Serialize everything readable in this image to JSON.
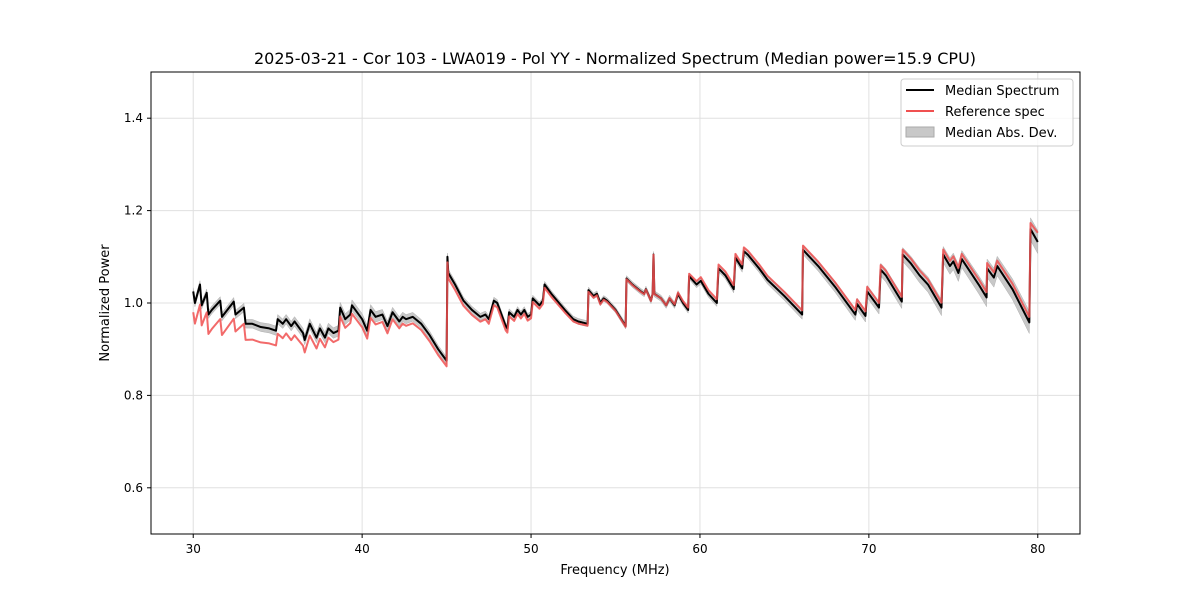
{
  "chart_data": {
    "type": "line",
    "title": "2025-03-21 - Cor 103 - LWA019 - Pol YY - Normalized Spectrum (Median power=15.9 CPU)",
    "xlabel": "Frequency (MHz)",
    "ylabel": "Normalized Power",
    "xlim": [
      27.5,
      82.5
    ],
    "ylim": [
      0.5,
      1.5
    ],
    "xticks": [
      30,
      40,
      50,
      60,
      70,
      80
    ],
    "yticks": [
      0.6,
      0.8,
      1.0,
      1.2,
      1.4
    ],
    "xtick_labels": [
      "30",
      "40",
      "50",
      "60",
      "70",
      "80"
    ],
    "ytick_labels": [
      "0.6",
      "0.8",
      "1.0",
      "1.2",
      "1.4"
    ],
    "grid": true,
    "legend_position": "top-right",
    "legend": [
      "Median Spectrum",
      "Reference spec",
      "Median Abs. Dev."
    ],
    "colors": {
      "median": "#000000",
      "reference": "#f05050",
      "mad": "#c8c8c8"
    },
    "median": [
      [
        30.0,
        1.025
      ],
      [
        30.1,
        1.0
      ],
      [
        30.4,
        1.04
      ],
      [
        30.5,
        0.995
      ],
      [
        30.8,
        1.022
      ],
      [
        30.9,
        0.975
      ],
      [
        31.1,
        0.985
      ],
      [
        31.6,
        1.005
      ],
      [
        31.7,
        0.97
      ],
      [
        32.4,
        1.003
      ],
      [
        32.5,
        0.975
      ],
      [
        33.0,
        0.99
      ],
      [
        33.1,
        0.955
      ],
      [
        33.5,
        0.955
      ],
      [
        34.0,
        0.948
      ],
      [
        34.5,
        0.945
      ],
      [
        34.9,
        0.94
      ],
      [
        35.0,
        0.965
      ],
      [
        35.3,
        0.955
      ],
      [
        35.5,
        0.965
      ],
      [
        35.8,
        0.95
      ],
      [
        36.0,
        0.96
      ],
      [
        36.5,
        0.935
      ],
      [
        36.6,
        0.92
      ],
      [
        36.9,
        0.955
      ],
      [
        37.3,
        0.925
      ],
      [
        37.5,
        0.945
      ],
      [
        37.8,
        0.925
      ],
      [
        38.0,
        0.945
      ],
      [
        38.3,
        0.935
      ],
      [
        38.6,
        0.94
      ],
      [
        38.7,
        0.99
      ],
      [
        39.0,
        0.965
      ],
      [
        39.3,
        0.975
      ],
      [
        39.4,
        0.995
      ],
      [
        40.0,
        0.965
      ],
      [
        40.3,
        0.94
      ],
      [
        40.5,
        0.985
      ],
      [
        40.8,
        0.97
      ],
      [
        41.2,
        0.975
      ],
      [
        41.5,
        0.95
      ],
      [
        41.8,
        0.98
      ],
      [
        42.2,
        0.96
      ],
      [
        42.4,
        0.97
      ],
      [
        42.6,
        0.965
      ],
      [
        43.0,
        0.97
      ],
      [
        43.5,
        0.955
      ],
      [
        44.0,
        0.93
      ],
      [
        44.5,
        0.9
      ],
      [
        45.0,
        0.875
      ],
      [
        45.05,
        1.1
      ],
      [
        45.1,
        1.065
      ],
      [
        45.5,
        1.04
      ],
      [
        46.0,
        1.005
      ],
      [
        46.5,
        0.985
      ],
      [
        47.0,
        0.97
      ],
      [
        47.3,
        0.975
      ],
      [
        47.5,
        0.965
      ],
      [
        47.8,
        1.005
      ],
      [
        48.0,
        1.0
      ],
      [
        48.5,
        0.95
      ],
      [
        48.6,
        0.945
      ],
      [
        48.7,
        0.98
      ],
      [
        49.0,
        0.97
      ],
      [
        49.2,
        0.985
      ],
      [
        49.4,
        0.975
      ],
      [
        49.6,
        0.985
      ],
      [
        49.8,
        0.97
      ],
      [
        50.0,
        0.975
      ],
      [
        50.1,
        1.01
      ],
      [
        50.5,
        0.995
      ],
      [
        50.7,
        1.005
      ],
      [
        50.8,
        1.04
      ],
      [
        51.2,
        1.02
      ],
      [
        52.0,
        0.985
      ],
      [
        52.5,
        0.965
      ],
      [
        52.8,
        0.96
      ],
      [
        53.35,
        0.955
      ],
      [
        53.4,
        1.028
      ],
      [
        53.7,
        1.015
      ],
      [
        53.9,
        1.02
      ],
      [
        54.1,
        1.0
      ],
      [
        54.3,
        1.01
      ],
      [
        54.5,
        1.005
      ],
      [
        55.0,
        0.985
      ],
      [
        55.6,
        0.95
      ],
      [
        55.65,
        1.053
      ],
      [
        56.0,
        1.04
      ],
      [
        56.5,
        1.025
      ],
      [
        56.7,
        1.02
      ],
      [
        56.8,
        1.03
      ],
      [
        57.1,
        1.005
      ],
      [
        57.2,
        1.02
      ],
      [
        57.25,
        1.105
      ],
      [
        57.3,
        1.02
      ],
      [
        57.7,
        1.01
      ],
      [
        58.0,
        0.995
      ],
      [
        58.2,
        1.01
      ],
      [
        58.5,
        0.995
      ],
      [
        58.7,
        1.02
      ],
      [
        59.0,
        1.0
      ],
      [
        59.3,
        0.985
      ],
      [
        59.36,
        1.058
      ],
      [
        59.8,
        1.04
      ],
      [
        60.05,
        1.048
      ],
      [
        60.5,
        1.02
      ],
      [
        61.0,
        1.0
      ],
      [
        61.1,
        1.075
      ],
      [
        61.5,
        1.06
      ],
      [
        62.0,
        1.03
      ],
      [
        62.1,
        1.098
      ],
      [
        62.5,
        1.075
      ],
      [
        62.6,
        1.112
      ],
      [
        62.85,
        1.104
      ],
      [
        63.5,
        1.075
      ],
      [
        64.0,
        1.05
      ],
      [
        65.0,
        1.015
      ],
      [
        66.05,
        0.975
      ],
      [
        66.1,
        1.115
      ],
      [
        67.0,
        1.08
      ],
      [
        68.0,
        1.035
      ],
      [
        69.2,
        0.975
      ],
      [
        69.3,
        0.998
      ],
      [
        69.8,
        0.972
      ],
      [
        69.9,
        1.025
      ],
      [
        70.6,
        0.99
      ],
      [
        70.7,
        1.072
      ],
      [
        71.0,
        1.06
      ],
      [
        71.5,
        1.03
      ],
      [
        71.95,
        1.003
      ],
      [
        72.0,
        1.105
      ],
      [
        72.5,
        1.085
      ],
      [
        73.0,
        1.06
      ],
      [
        73.5,
        1.04
      ],
      [
        74.3,
        0.99
      ],
      [
        74.4,
        1.105
      ],
      [
        74.8,
        1.08
      ],
      [
        75.0,
        1.09
      ],
      [
        75.3,
        1.065
      ],
      [
        75.5,
        1.095
      ],
      [
        76.5,
        1.04
      ],
      [
        76.97,
        1.012
      ],
      [
        77.0,
        1.075
      ],
      [
        77.4,
        1.055
      ],
      [
        77.6,
        1.08
      ],
      [
        78.5,
        1.03
      ],
      [
        79.5,
        0.958
      ],
      [
        79.57,
        1.16
      ],
      [
        80.0,
        1.132
      ]
    ],
    "reference_offset": [
      [
        30,
        -0.045
      ],
      [
        33,
        -0.035
      ],
      [
        36,
        -0.03
      ],
      [
        38,
        -0.02
      ],
      [
        42,
        -0.015
      ],
      [
        45,
        -0.012
      ],
      [
        50,
        -0.008
      ],
      [
        55,
        -0.002
      ],
      [
        58,
        0.0
      ],
      [
        60,
        0.008
      ],
      [
        70,
        0.01
      ],
      [
        79.5,
        0.012
      ],
      [
        80,
        0.02
      ]
    ],
    "mad_halfwidth": [
      [
        30,
        0.008
      ],
      [
        40,
        0.012
      ],
      [
        45,
        0.008
      ],
      [
        55,
        0.006
      ],
      [
        60,
        0.007
      ],
      [
        66,
        0.01
      ],
      [
        72,
        0.015
      ],
      [
        77,
        0.02
      ],
      [
        80,
        0.025
      ]
    ]
  }
}
